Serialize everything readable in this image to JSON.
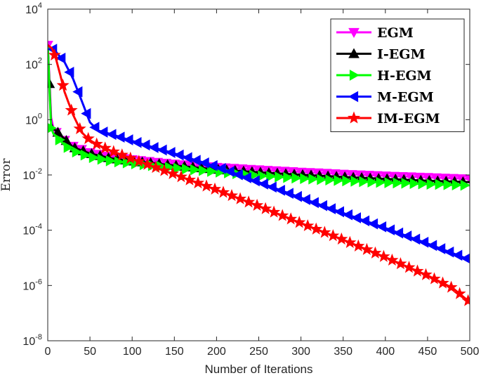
{
  "chart_data": {
    "type": "line",
    "xlabel": "Number of Iterations",
    "ylabel": "Error",
    "xlim": [
      0,
      500
    ],
    "ylim": [
      1e-08,
      10000
    ],
    "yscale": "log",
    "grid": false,
    "legend_position": "top-right",
    "x_ticks": [
      "0",
      "50",
      "100",
      "150",
      "200",
      "250",
      "300",
      "350",
      "400",
      "450",
      "500"
    ],
    "y_ticks": [
      {
        "base": "10",
        "exp": "-8",
        "value": 1e-08
      },
      {
        "base": "10",
        "exp": "-6",
        "value": 1e-06
      },
      {
        "base": "10",
        "exp": "-4",
        "value": 0.0001
      },
      {
        "base": "10",
        "exp": "-2",
        "value": 0.01
      },
      {
        "base": "10",
        "exp": "0",
        "value": 1
      },
      {
        "base": "10",
        "exp": "2",
        "value": 100
      },
      {
        "base": "10",
        "exp": "4",
        "value": 10000
      }
    ],
    "series": [
      {
        "name": "EGM",
        "color": "#ff00ff",
        "marker": "triangle-down",
        "x": [
          0,
          2,
          4,
          7,
          10,
          20,
          30,
          50,
          75,
          100,
          150,
          200,
          250,
          300,
          350,
          400,
          450,
          500
        ],
        "y": [
          500,
          30,
          1.2,
          0.45,
          0.35,
          0.18,
          0.11,
          0.065,
          0.045,
          0.036,
          0.025,
          0.019,
          0.0155,
          0.0128,
          0.0108,
          0.0093,
          0.0082,
          0.0072
        ]
      },
      {
        "name": "I-EGM",
        "color": "#000000",
        "marker": "triangle-up",
        "x": [
          0,
          2,
          4,
          7,
          10,
          20,
          30,
          50,
          75,
          100,
          150,
          200,
          250,
          300,
          350,
          400,
          450,
          500
        ],
        "y": [
          500,
          20,
          0.7,
          0.45,
          0.4,
          0.2,
          0.1,
          0.06,
          0.04,
          0.032,
          0.022,
          0.016,
          0.0125,
          0.0102,
          0.0085,
          0.0072,
          0.0062,
          0.0055
        ]
      },
      {
        "name": "H-EGM",
        "color": "#00ff00",
        "marker": "triangle-right",
        "x": [
          0,
          2,
          4,
          7,
          10,
          20,
          30,
          50,
          75,
          100,
          150,
          200,
          250,
          300,
          350,
          400,
          450,
          500
        ],
        "y": [
          500,
          15,
          0.5,
          0.3,
          0.25,
          0.12,
          0.075,
          0.045,
          0.032,
          0.026,
          0.018,
          0.013,
          0.0095,
          0.0075,
          0.0062,
          0.0053,
          0.0047,
          0.0042
        ]
      },
      {
        "name": "M-EGM",
        "color": "#0000ff",
        "marker": "triangle-left",
        "x": [
          0,
          10,
          20,
          30,
          40,
          50,
          60,
          75,
          100,
          125,
          150,
          200,
          250,
          300,
          350,
          400,
          450,
          500
        ],
        "y": [
          500,
          280,
          120,
          30,
          5,
          0.8,
          0.4,
          0.3,
          0.17,
          0.1,
          0.06,
          0.02,
          0.0055,
          0.0015,
          0.00042,
          0.00012,
          3.3e-05,
          8.5e-06
        ]
      },
      {
        "name": "IM-EGM",
        "color": "#ff0000",
        "marker": "star",
        "x": [
          0,
          5,
          10,
          15,
          20,
          30,
          40,
          50,
          60,
          75,
          100,
          125,
          150,
          200,
          250,
          300,
          350,
          400,
          450,
          480,
          500
        ],
        "y": [
          500,
          380,
          150,
          40,
          10,
          1.5,
          0.35,
          0.18,
          0.12,
          0.075,
          0.038,
          0.02,
          0.0105,
          0.0029,
          0.00075,
          0.00018,
          4.5e-05,
          1.05e-05,
          2.3e-06,
          8e-07,
          2.5e-07
        ]
      }
    ]
  }
}
